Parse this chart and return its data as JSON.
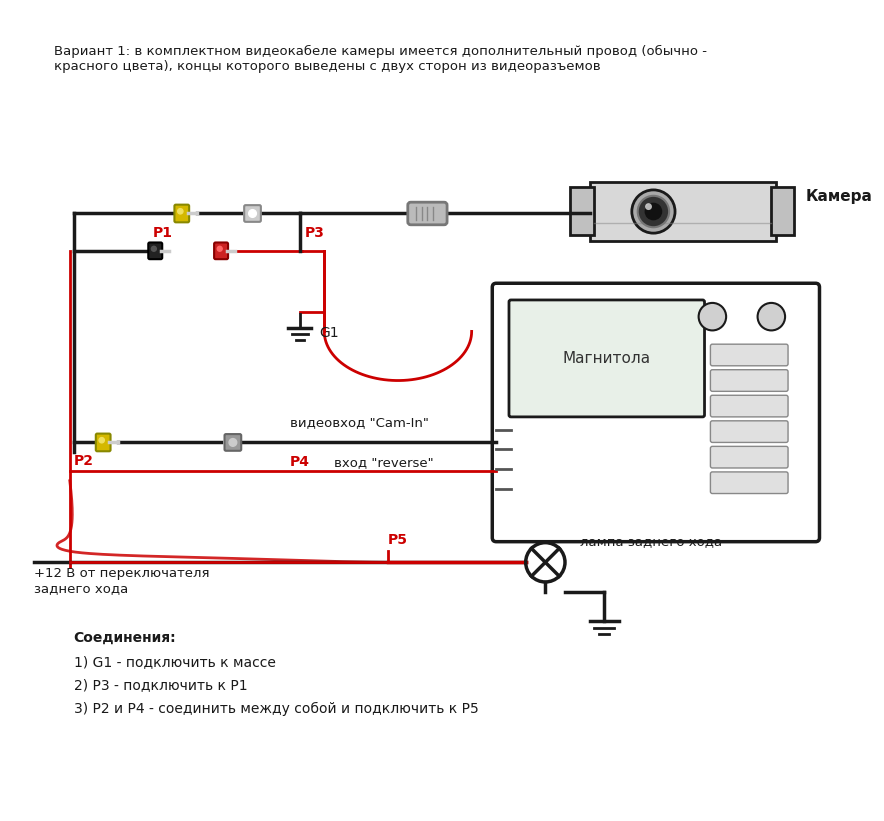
{
  "title_text": "Вариант 1: в комплектном видеокабеле камеры имеется дополнительный провод (обычно -\nкрасного цвета), концы которого выведены с двух сторон из видеоразъемов",
  "bg_color": "#ffffff",
  "label_camera": "Камера",
  "label_magnitola": "Магнитола",
  "label_lamp": "лампа заднего хода",
  "label_plus12": "+12 В от переключателя\nзаднего хода",
  "label_videovhod": "видеовход \"Cam-In\"",
  "label_reverse": "вход \"reverse\"",
  "label_G1": "G1",
  "label_P1": "P1",
  "label_P2": "P2",
  "label_P3": "P3",
  "label_P4": "P4",
  "label_P5": "P5",
  "connections_title": "Соединения:",
  "connection1": "1) G1 - подключить к массе",
  "connection2": "2) Р3 - подключить к Р1",
  "connection3": "3) Р2 и Р4 - соединить между собой и подключить к Р5",
  "red_color": "#cc0000",
  "black_color": "#1a1a1a",
  "yellow_color": "#d4b800",
  "dark_gray": "#555555"
}
